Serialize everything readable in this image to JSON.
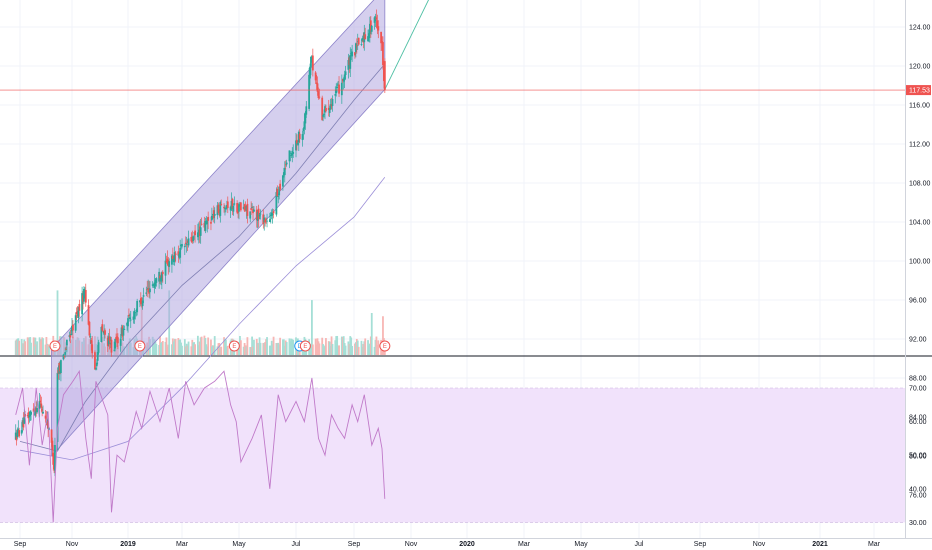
{
  "chart_data": [
    {
      "type": "candlestick",
      "pane": "price",
      "title": "",
      "ylim": [
        76,
        127
      ],
      "y_ticks": [
        "124.00",
        "120.00",
        "116.00",
        "112.00",
        "108.00",
        "104.00",
        "100.00",
        "96.00",
        "92.00",
        "88.00",
        "84.00",
        "80.00",
        "76.00"
      ],
      "last_price_label": "117.53",
      "last_price": 117.53,
      "colors": {
        "up": "#26a69a",
        "down": "#ef5350",
        "channel_fill": "#b3a8e0",
        "channel_line": "#8c82c9",
        "trendline": "#4dbfa3",
        "ma_short": "#7f7fb3",
        "ma_long": "#9c8fd8",
        "last_price_line": "#ef5350"
      },
      "channel": {
        "start": "2018-10-08",
        "end": "2019-10-04",
        "lower_start": 80.0,
        "lower_end": 117.6,
        "upper_start": 91.0,
        "upper_end": 128.0
      },
      "trendline": {
        "from": {
          "date": "2019-10-04",
          "value": 117.6
        },
        "to": {
          "date": "2019-12-12",
          "value": 131.0
        }
      },
      "moving_average_long": {
        "name": "",
        "points": [
          [
            "2018-09-01",
            80.6
          ],
          [
            "2018-11-01",
            79.6
          ],
          [
            "2019-01-01",
            81.5
          ],
          [
            "2019-03-01",
            87.0
          ],
          [
            "2019-05-01",
            93.5
          ],
          [
            "2019-07-01",
            99.5
          ],
          [
            "2019-09-01",
            104.5
          ],
          [
            "2019-10-04",
            108.6
          ]
        ]
      },
      "moving_average_short": {
        "name": "",
        "points": [
          [
            "2018-09-01",
            81.5
          ],
          [
            "2018-10-15",
            80.5
          ],
          [
            "2018-11-15",
            85.5
          ],
          [
            "2019-01-01",
            91.5
          ],
          [
            "2019-03-01",
            97.5
          ],
          [
            "2019-05-01",
            102.5
          ],
          [
            "2019-07-01",
            109.0
          ],
          [
            "2019-09-01",
            116.5
          ],
          [
            "2019-10-04",
            120.2
          ]
        ]
      },
      "price_path": [
        [
          "2018-08-27",
          82.0
        ],
        [
          "2018-09-10",
          84.0
        ],
        [
          "2018-09-24",
          85.5
        ],
        [
          "2018-10-05",
          83.0
        ],
        [
          "2018-10-11",
          79.0
        ],
        [
          "2018-10-15",
          88.5
        ],
        [
          "2018-11-01",
          93.0
        ],
        [
          "2018-11-15",
          97.0
        ],
        [
          "2018-11-22",
          91.0
        ],
        [
          "2018-11-26",
          89.0
        ],
        [
          "2018-12-03",
          93.0
        ],
        [
          "2018-12-15",
          91.0
        ],
        [
          "2019-01-15",
          96.0
        ],
        [
          "2019-02-15",
          100.0
        ],
        [
          "2019-03-15",
          102.5
        ],
        [
          "2019-04-15",
          106.0
        ],
        [
          "2019-05-15",
          105.0
        ],
        [
          "2019-06-03",
          104.0
        ],
        [
          "2019-06-20",
          110.0
        ],
        [
          "2019-07-10",
          114.0
        ],
        [
          "2019-07-17",
          121.0
        ],
        [
          "2019-07-29",
          115.0
        ],
        [
          "2019-08-15",
          117.5
        ],
        [
          "2019-09-01",
          121.5
        ],
        [
          "2019-09-15",
          123.5
        ],
        [
          "2019-09-25",
          124.8
        ],
        [
          "2019-10-01",
          122.0
        ],
        [
          "2019-10-04",
          117.53
        ]
      ]
    },
    {
      "type": "bar",
      "pane": "volume",
      "title": "",
      "series": [
        {
          "name": "",
          "note_spikes": [
            [
              "2018-10-15",
              1.0
            ],
            [
              "2019-01-16",
              0.9
            ],
            [
              "2019-02-15",
              1.0
            ],
            [
              "2019-04-28",
              0.8
            ],
            [
              "2019-07-18",
              0.85
            ],
            [
              "2019-09-20",
              0.65
            ],
            [
              "2019-10-02",
              0.6
            ]
          ]
        }
      ]
    },
    {
      "type": "line",
      "pane": "indicator",
      "title": "",
      "ylim": [
        28,
        76
      ],
      "y_ticks": [
        "70.00",
        "60.00",
        "50.00",
        "40.00",
        "30.00"
      ],
      "band": {
        "from": 30,
        "to": 70
      },
      "color": "#c07ac9",
      "band_color": "#f1e2fb",
      "points": [
        [
          "2018-08-27",
          62
        ],
        [
          "2018-09-04",
          70
        ],
        [
          "2018-09-12",
          47
        ],
        [
          "2018-09-20",
          70
        ],
        [
          "2018-09-27",
          53
        ],
        [
          "2018-10-04",
          63
        ],
        [
          "2018-10-10",
          30
        ],
        [
          "2018-10-15",
          58
        ],
        [
          "2018-10-22",
          68
        ],
        [
          "2018-11-02",
          72
        ],
        [
          "2018-11-09",
          75
        ],
        [
          "2018-11-16",
          55
        ],
        [
          "2018-11-22",
          43
        ],
        [
          "2018-11-27",
          72
        ],
        [
          "2018-12-10",
          62
        ],
        [
          "2018-12-14",
          33
        ],
        [
          "2018-12-20",
          50
        ],
        [
          "2018-12-28",
          48
        ],
        [
          "2019-01-10",
          63
        ],
        [
          "2019-01-16",
          58
        ],
        [
          "2019-01-25",
          69
        ],
        [
          "2019-02-05",
          60
        ],
        [
          "2019-02-15",
          70
        ],
        [
          "2019-02-25",
          55
        ],
        [
          "2019-03-05",
          72
        ],
        [
          "2019-03-14",
          65
        ],
        [
          "2019-03-25",
          70
        ],
        [
          "2019-04-05",
          72
        ],
        [
          "2019-04-15",
          75
        ],
        [
          "2019-04-22",
          65
        ],
        [
          "2019-04-28",
          60
        ],
        [
          "2019-05-03",
          48
        ],
        [
          "2019-05-15",
          55
        ],
        [
          "2019-05-25",
          62
        ],
        [
          "2019-06-03",
          40
        ],
        [
          "2019-06-12",
          68
        ],
        [
          "2019-06-20",
          60
        ],
        [
          "2019-07-01",
          66
        ],
        [
          "2019-07-10",
          60
        ],
        [
          "2019-07-18",
          73
        ],
        [
          "2019-07-25",
          55
        ],
        [
          "2019-08-01",
          50
        ],
        [
          "2019-08-08",
          62
        ],
        [
          "2019-08-15",
          58
        ],
        [
          "2019-08-22",
          55
        ],
        [
          "2019-08-30",
          65
        ],
        [
          "2019-09-05",
          60
        ],
        [
          "2019-09-12",
          68
        ],
        [
          "2019-09-20",
          53
        ],
        [
          "2019-09-27",
          58
        ],
        [
          "2019-10-01",
          52
        ],
        [
          "2019-10-04",
          37
        ]
      ]
    }
  ],
  "time_axis": {
    "labels": [
      "Sep",
      "Nov",
      "2019",
      "Mar",
      "May",
      "Jul",
      "Sep",
      "Nov",
      "2020",
      "Mar",
      "May",
      "Jul",
      "Sep",
      "Nov",
      "2021",
      "Mar"
    ],
    "dates": [
      "2018-09-01",
      "2018-11-01",
      "2019-01-01",
      "2019-03-01",
      "2019-05-01",
      "2019-07-01",
      "2019-09-01",
      "2019-11-01",
      "2020-01-01",
      "2020-03-01",
      "2020-05-01",
      "2020-07-01",
      "2020-09-01",
      "2020-11-01",
      "2021-01-01",
      "2021-03-01"
    ],
    "bold_labels": [
      "2019",
      "2020",
      "2021"
    ]
  },
  "events": [
    {
      "type": "earnings",
      "label": "E",
      "date": "2018-10-12",
      "color": "#ef5350"
    },
    {
      "type": "earnings",
      "label": "E",
      "date": "2019-01-14",
      "color": "#ef5350"
    },
    {
      "type": "earnings",
      "label": "E",
      "date": "2019-04-26",
      "color": "#ef5350"
    },
    {
      "type": "dividend",
      "label": "D",
      "date": "2019-07-05",
      "color": "#2196f3"
    },
    {
      "type": "earnings",
      "label": "E",
      "date": "2019-07-11",
      "color": "#ef5350"
    },
    {
      "type": "earnings",
      "label": "E",
      "date": "2019-10-04",
      "color": "#ef5350"
    }
  ]
}
